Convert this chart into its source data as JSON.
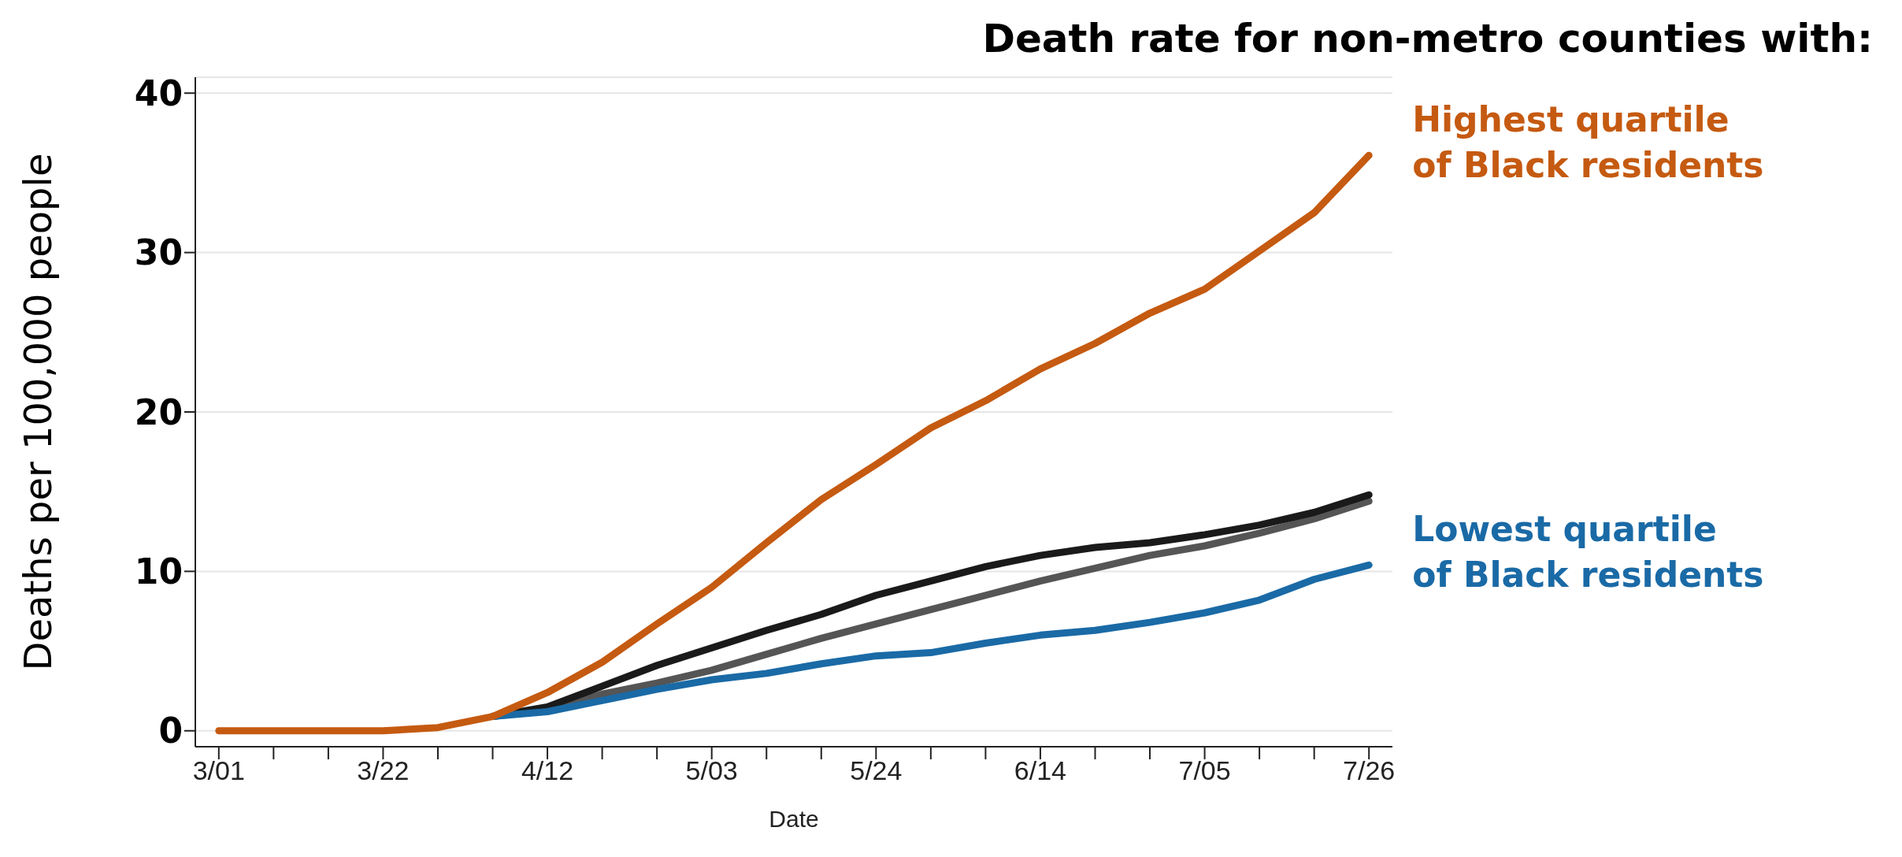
{
  "chart_data": {
    "type": "line",
    "title": "Death rate for non-metro counties with:",
    "xlabel": "Date",
    "ylabel": "Deaths per 100,000 people",
    "x": [
      "--03-01",
      "--03-08",
      "--03-15",
      "--03-22",
      "--03-29",
      "--04-05",
      "--04-12",
      "--04-19",
      "--04-26",
      "--05-03",
      "--05-10",
      "--05-17",
      "--05-24",
      "--05-31",
      "--06-07",
      "--06-14",
      "--06-21",
      "--06-28",
      "--07-05",
      "--07-12",
      "--07-19",
      "--07-26"
    ],
    "series": [
      {
        "color": "#555555",
        "values": [
          null,
          null,
          null,
          null,
          null,
          0.9,
          1.3,
          2.3,
          3.0,
          3.8,
          4.8,
          5.8,
          6.7,
          7.6,
          8.5,
          9.4,
          10.2,
          11.0,
          11.6,
          12.4,
          13.3,
          14.4
        ]
      },
      {
        "color": "#1a1a1a",
        "values": [
          null,
          null,
          null,
          null,
          null,
          0.9,
          1.5,
          2.8,
          4.1,
          5.2,
          6.3,
          7.3,
          8.5,
          9.4,
          10.3,
          11.0,
          11.5,
          11.8,
          12.3,
          12.9,
          13.7,
          14.8
        ]
      },
      {
        "name": "Lowest quartile of Black residents",
        "color": "#1a6aa6",
        "values": [
          null,
          null,
          null,
          null,
          null,
          0.9,
          1.2,
          1.9,
          2.6,
          3.2,
          3.6,
          4.2,
          4.7,
          4.9,
          5.5,
          6.0,
          6.3,
          6.8,
          7.4,
          8.2,
          9.5,
          10.4
        ]
      },
      {
        "name": "Highest quartile of Black residents",
        "color": "#c55a11",
        "values": [
          0,
          0,
          0,
          0,
          0.2,
          0.9,
          2.4,
          4.3,
          6.7,
          9.0,
          11.8,
          14.5,
          16.7,
          19.0,
          20.7,
          22.7,
          24.3,
          26.2,
          27.7,
          30.1,
          32.5,
          36.1
        ]
      }
    ],
    "xlim": [
      "--02-26",
      "--07-29"
    ],
    "xticks": [
      {
        "value": "--03-01",
        "label": "3/01"
      },
      {
        "value": "--03-08",
        "label": null
      },
      {
        "value": "--03-15",
        "label": null
      },
      {
        "value": "--03-22",
        "label": "3/22"
      },
      {
        "value": "--03-29",
        "label": null
      },
      {
        "value": "--04-05",
        "label": null
      },
      {
        "value": "--04-12",
        "label": "4/12"
      },
      {
        "value": "--04-19",
        "label": null
      },
      {
        "value": "--04-26",
        "label": null
      },
      {
        "value": "--05-03",
        "label": "5/03"
      },
      {
        "value": "--05-10",
        "label": null
      },
      {
        "value": "--05-17",
        "label": null
      },
      {
        "value": "--05-24",
        "label": "5/24"
      },
      {
        "value": "--05-31",
        "label": null
      },
      {
        "value": "--06-07",
        "label": null
      },
      {
        "value": "--06-14",
        "label": "6/14"
      },
      {
        "value": "--06-21",
        "label": null
      },
      {
        "value": "--06-28",
        "label": null
      },
      {
        "value": "--07-05",
        "label": "7/05"
      },
      {
        "value": "--07-12",
        "label": null
      },
      {
        "value": "--07-19",
        "label": null
      },
      {
        "value": "--07-26",
        "label": "7/26"
      }
    ],
    "ylim": [
      -1,
      41
    ],
    "yticks": [
      0,
      10,
      20,
      30,
      40
    ],
    "grid": "y",
    "legend": false,
    "marker": "none",
    "line_style": "solid"
  }
}
